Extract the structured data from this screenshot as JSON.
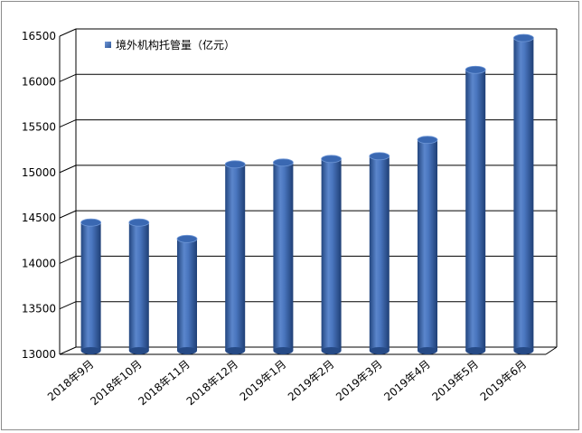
{
  "chart_data": {
    "type": "bar",
    "style": "3d-cylinder",
    "categories": [
      "2018年9月",
      "2018年10月",
      "2018年11月",
      "2018年12月",
      "2019年1月",
      "2019年2月",
      "2019年3月",
      "2019年4月",
      "2019年5月",
      "2019年6月"
    ],
    "series": [
      {
        "name": "境外机构托管量（亿元）",
        "values": [
          14410,
          14410,
          14230,
          15050,
          15070,
          15110,
          15140,
          15320,
          16090,
          16440
        ]
      }
    ],
    "ylim": [
      13000,
      16500
    ],
    "yticks": [
      13000,
      13500,
      14000,
      14500,
      15000,
      15500,
      16000,
      16500
    ],
    "grid": true,
    "legend": "top-left",
    "colors": {
      "bar_main": "#3e6cb6",
      "bar_light": "#6f97d6",
      "bar_dark": "#23467f",
      "grid": "#000000",
      "wall": "#ffffff"
    }
  }
}
